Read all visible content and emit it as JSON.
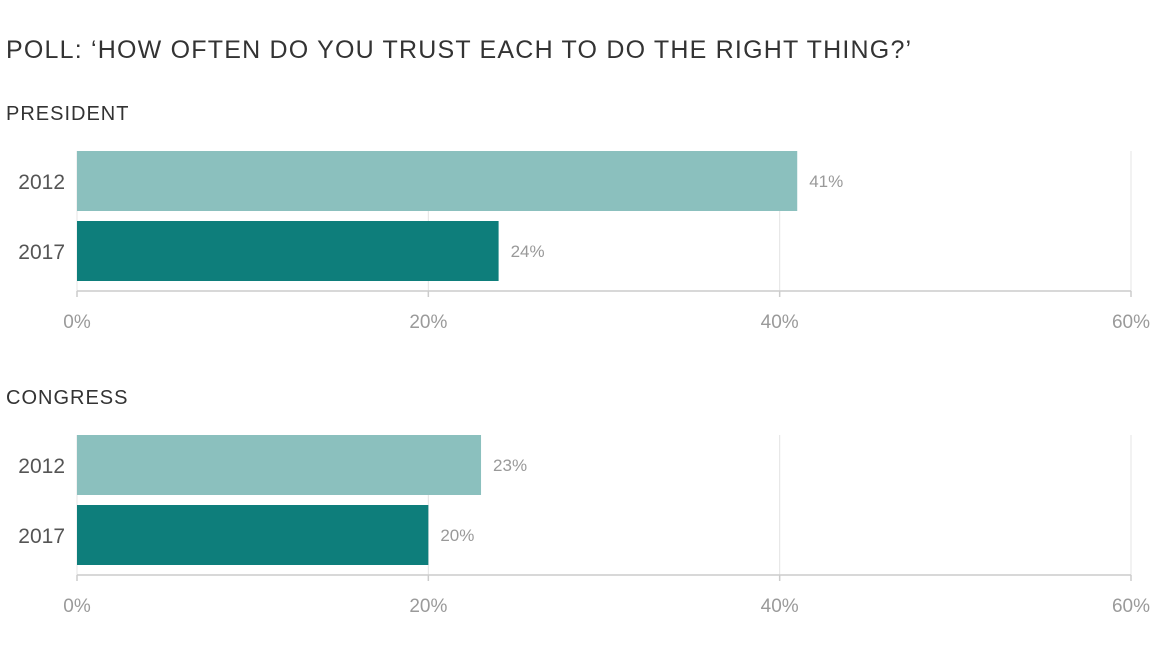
{
  "title": "POLL: ‘HOW OFTEN DO YOU TRUST EACH TO DO THE RIGHT THING?’",
  "colors": {
    "series_2012": "#8bc0be",
    "series_2017": "#0e7e7b",
    "grid": "#e4e4e4",
    "axis": "#cccccc",
    "tick_text": "#9a9a9a",
    "value_text": "#999999"
  },
  "chart_data": [
    {
      "type": "bar",
      "orientation": "horizontal",
      "title": "PRESIDENT",
      "categories": [
        "2012",
        "2017"
      ],
      "values": [
        41,
        24
      ],
      "value_labels": [
        "41%",
        "24%"
      ],
      "xlim": [
        0,
        60
      ],
      "xticks": [
        0,
        20,
        40,
        60
      ],
      "xtick_labels": [
        "0%",
        "20%",
        "40%",
        "60%"
      ],
      "grid": true
    },
    {
      "type": "bar",
      "orientation": "horizontal",
      "title": "CONGRESS",
      "categories": [
        "2012",
        "2017"
      ],
      "values": [
        23,
        20
      ],
      "value_labels": [
        "23%",
        "20%"
      ],
      "xlim": [
        0,
        60
      ],
      "xticks": [
        0,
        20,
        40,
        60
      ],
      "xtick_labels": [
        "0%",
        "20%",
        "40%",
        "60%"
      ],
      "grid": true
    }
  ]
}
